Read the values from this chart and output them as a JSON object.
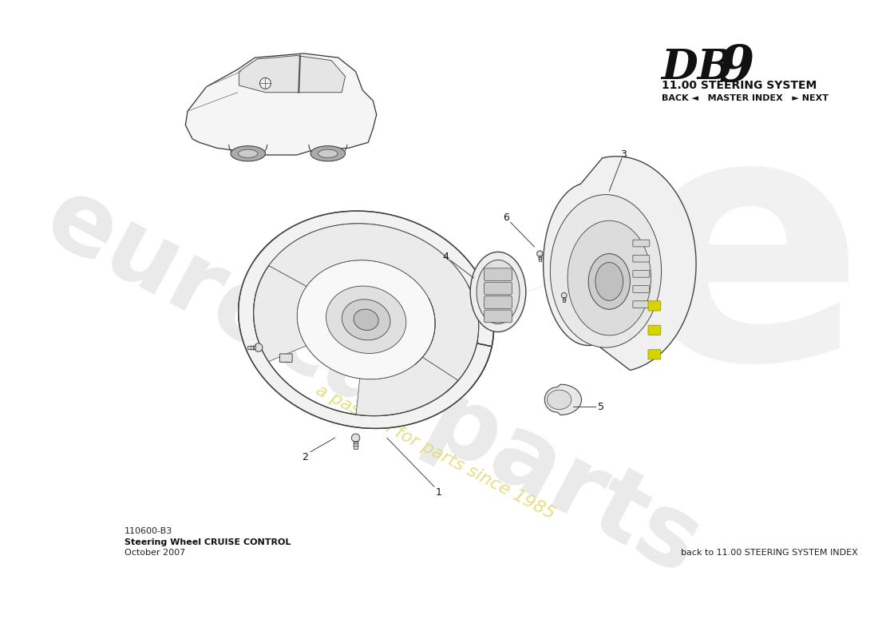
{
  "bg_color": "#ffffff",
  "title_system": "11.00 STEERING SYSTEM",
  "nav_text": "BACK ◄   MASTER INDEX   ► NEXT",
  "part_number": "110600-B3",
  "part_name": "Steering Wheel CRUISE CONTROL",
  "date": "October 2007",
  "bottom_right": "back to 11.00 STEERING SYSTEM INDEX",
  "watermark_text": "a passion for parts since 1985",
  "line_color": "#444444",
  "fill_light": "#f0f0f0",
  "fill_mid": "#d8d8d8",
  "fill_dark": "#b8b8b8",
  "yellow_accent": "#d4d400",
  "watermark_gray": "#cccccc",
  "watermark_yellow": "#e0d870"
}
